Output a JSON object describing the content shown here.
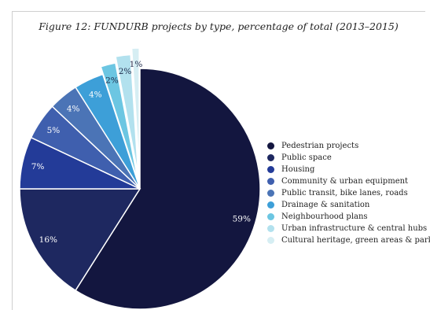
{
  "figure": {
    "title": "Figure 12: FUNDURB projects by type, percentage of total (2013–2015)"
  },
  "chart_data": {
    "type": "pie",
    "title": "Figure 12: FUNDURB projects by type, percentage of total (2013–2015)",
    "legend_position": "right",
    "slices": [
      {
        "label": "Pedestrian projects",
        "value": 59,
        "display": "59%",
        "color": "#13163f"
      },
      {
        "label": "Public space",
        "value": 16,
        "display": "16%",
        "color": "#1e2860"
      },
      {
        "label": "Housing",
        "value": 7,
        "display": "7%",
        "color": "#233b98"
      },
      {
        "label": "Community & urban equipment",
        "value": 5,
        "display": "5%",
        "color": "#3f5fae"
      },
      {
        "label": "Public transit, bike lanes, roads",
        "value": 4,
        "display": "4%",
        "color": "#4b74b6"
      },
      {
        "label": "Drainage & sanitation",
        "value": 4,
        "display": "4%",
        "color": "#3d9fd8"
      },
      {
        "label": "Neighbourhood plans",
        "value": 2,
        "display": "2%",
        "color": "#6cc6e2"
      },
      {
        "label": "Urban infrastructure & central hubs",
        "value": 2,
        "display": "2%",
        "color": "#b2e1ee"
      },
      {
        "label": "Cultural heritage, green areas & parks",
        "value": 1,
        "display": "1%",
        "color": "#d6eef3"
      }
    ]
  }
}
